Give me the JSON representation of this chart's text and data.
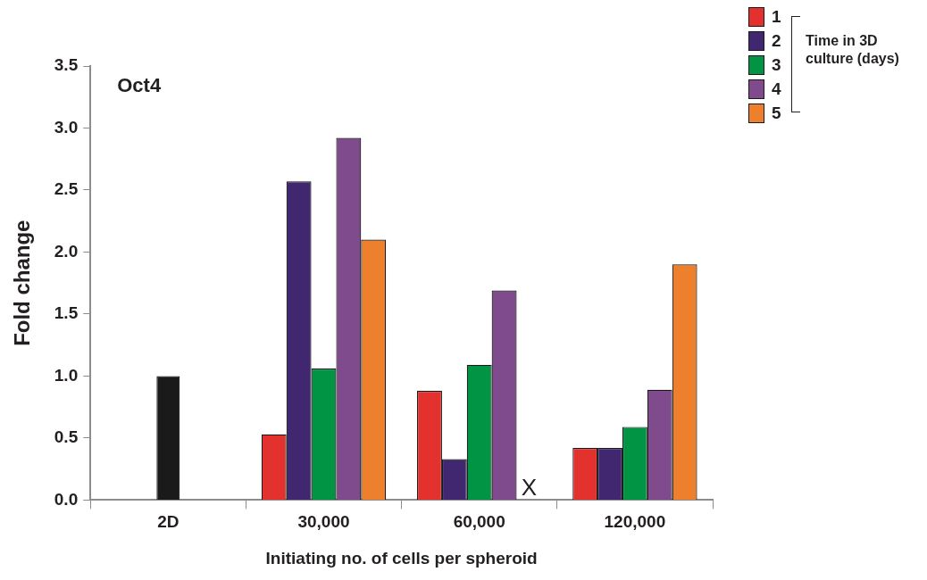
{
  "chart_data": {
    "type": "bar",
    "title": "Oct4",
    "xlabel": "Initiating no. of cells per spheroid",
    "ylabel": "Fold change",
    "legend_title": "Time in 3D culture (days)",
    "categories": [
      "2D",
      "30,000",
      "60,000",
      "120,000"
    ],
    "series": [
      {
        "name": "1",
        "color": "#e3312d",
        "values": [
          null,
          0.53,
          0.88,
          0.42
        ]
      },
      {
        "name": "2",
        "color": "#41276f",
        "values": [
          null,
          2.57,
          0.33,
          0.42
        ]
      },
      {
        "name": "3",
        "color": "#009444",
        "values": [
          null,
          1.06,
          1.09,
          0.59
        ]
      },
      {
        "name": "4",
        "color": "#7f4b8d",
        "values": [
          null,
          2.92,
          1.69,
          0.89
        ]
      },
      {
        "name": "5",
        "color": "#ee7f2d",
        "values": [
          null,
          2.1,
          null,
          1.9
        ]
      },
      {
        "color": "#1a1a1a",
        "values": [
          1.0,
          null,
          null,
          null
        ]
      }
    ],
    "ylim": [
      0,
      3.5
    ],
    "yticks": [
      {
        "value": 0,
        "label": "0.0"
      },
      {
        "value": 0.5,
        "label": "0.5"
      },
      {
        "value": 1,
        "label": "1.0"
      },
      {
        "value": 1.5,
        "label": "1.5"
      },
      {
        "value": 2,
        "label": "2.0"
      },
      {
        "value": 2.5,
        "label": "2.5"
      },
      {
        "value": 3,
        "label": "3.0"
      },
      {
        "value": 3.5,
        "label": "3.5"
      }
    ],
    "annotations": [
      {
        "text": "X",
        "x": "60,000",
        "y": 0
      }
    ],
    "grid": false,
    "legend": "top right"
  }
}
